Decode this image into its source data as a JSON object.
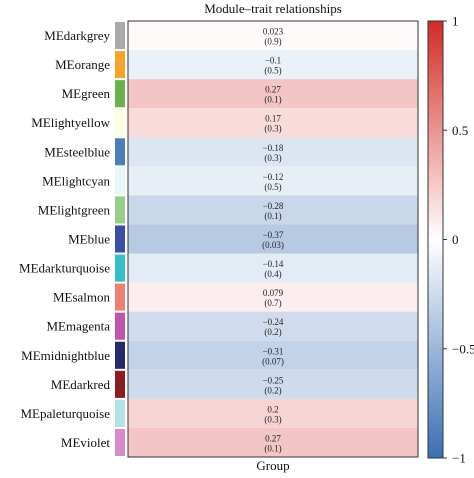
{
  "chart_data": {
    "type": "heatmap",
    "title": "Module–trait relationships",
    "xlabel": "Group",
    "columns": [
      "Group"
    ],
    "rows": [
      {
        "module": "MEdarkgrey",
        "color": "#a9a9a9",
        "correlation": 0.023,
        "correlation_label": "0.023",
        "p_label": "(0.9)"
      },
      {
        "module": "MEorange",
        "color": "#f7a32a",
        "correlation": -0.1,
        "correlation_label": "−0.1",
        "p_label": "(0.5)"
      },
      {
        "module": "MEgreen",
        "color": "#6ab04c",
        "correlation": 0.27,
        "correlation_label": "0.27",
        "p_label": "(0.1)"
      },
      {
        "module": "MElightyellow",
        "color": "#fdfde0",
        "correlation": 0.17,
        "correlation_label": "0.17",
        "p_label": "(0.3)"
      },
      {
        "module": "MEsteelblue",
        "color": "#4a7fb8",
        "correlation": -0.18,
        "correlation_label": "−0.18",
        "p_label": "(0.3)"
      },
      {
        "module": "MElightcyan",
        "color": "#e3f7f9",
        "correlation": -0.12,
        "correlation_label": "−0.12",
        "p_label": "(0.5)"
      },
      {
        "module": "MElightgreen",
        "color": "#98cd8a",
        "correlation": -0.28,
        "correlation_label": "−0.28",
        "p_label": "(0.1)"
      },
      {
        "module": "MEblue",
        "color": "#3a4fa6",
        "correlation": -0.37,
        "correlation_label": "−0.37",
        "p_label": "(0.03)"
      },
      {
        "module": "MEdarkturquoise",
        "color": "#35bfc6",
        "correlation": -0.14,
        "correlation_label": "−0.14",
        "p_label": "(0.4)"
      },
      {
        "module": "MEsalmon",
        "color": "#ee7f75",
        "correlation": 0.079,
        "correlation_label": "0.079",
        "p_label": "(0.7)"
      },
      {
        "module": "MEmagenta",
        "color": "#bd56a8",
        "correlation": -0.24,
        "correlation_label": "−0.24",
        "p_label": "(0.2)"
      },
      {
        "module": "MEmidnightblue",
        "color": "#242a6b",
        "correlation": -0.31,
        "correlation_label": "−0.31",
        "p_label": "(0.07)"
      },
      {
        "module": "MEdarkred",
        "color": "#8a1d1d",
        "correlation": -0.25,
        "correlation_label": "−0.25",
        "p_label": "(0.2)"
      },
      {
        "module": "MEpaleturquoise",
        "color": "#b3e1e8",
        "correlation": 0.2,
        "correlation_label": "0.2",
        "p_label": "(0.3)"
      },
      {
        "module": "MEviolet",
        "color": "#d58bc8",
        "correlation": 0.27,
        "correlation_label": "0.27",
        "p_label": "(0.1)"
      }
    ],
    "colorbar": {
      "range": [
        -1,
        1
      ],
      "ticks": [
        {
          "value": 1,
          "label": "1"
        },
        {
          "value": 0.5,
          "label": "0.5"
        },
        {
          "value": 0,
          "label": "0"
        },
        {
          "value": -0.5,
          "label": "−0.5"
        },
        {
          "value": -1,
          "label": "−1"
        }
      ],
      "stops": [
        "#3a6fb5",
        "#ffffff",
        "#d42a24"
      ]
    },
    "grid": false,
    "legend": "right"
  }
}
